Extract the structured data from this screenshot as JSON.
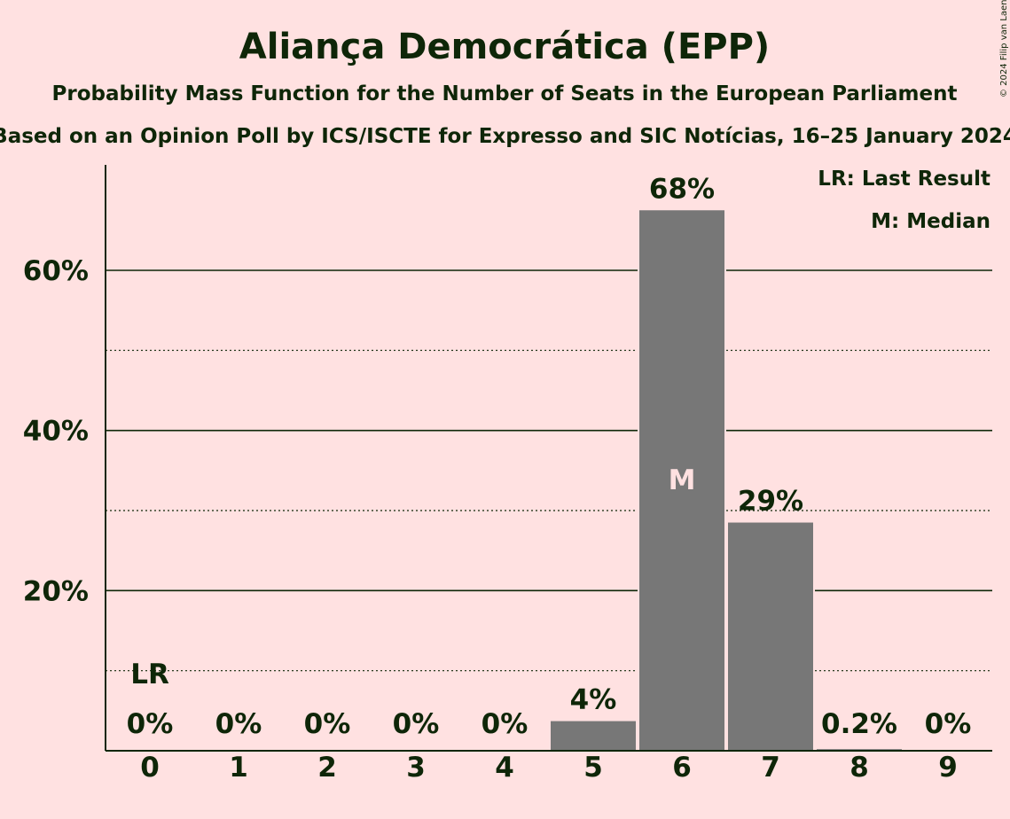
{
  "chart_data": {
    "type": "bar",
    "title": "Aliança Democrática (EPP)",
    "subtitle": "Probability Mass Function for the Number of Seats in the European Parliament",
    "subtitle2": "Based on an Opinion Poll by ICS/ISCTE for Expresso and SIC Notícias, 16–25 January 2024",
    "categories": [
      "0",
      "1",
      "2",
      "3",
      "4",
      "5",
      "6",
      "7",
      "8",
      "9"
    ],
    "values": [
      0,
      0,
      0,
      0,
      0,
      3.7,
      67.5,
      28.5,
      0.2,
      0
    ],
    "data_labels": [
      "0%",
      "0%",
      "0%",
      "0%",
      "0%",
      "4%",
      "68%",
      "29%",
      "0.2%",
      "0%"
    ],
    "ylim": [
      0,
      70
    ],
    "yticks": [
      20,
      40,
      60
    ],
    "ytick_labels": [
      "20%",
      "40%",
      "60%"
    ],
    "minor_gridlines": [
      10,
      30,
      50
    ],
    "last_result_seat": "0",
    "last_result_marker": "LR",
    "median_seat": "6",
    "median_marker": "M",
    "legend": [
      "LR: Last Result",
      "M: Median"
    ],
    "legend_position": "top-right",
    "bar_color": "#777777",
    "copyright": "© 2024 Filip van Laenen"
  }
}
